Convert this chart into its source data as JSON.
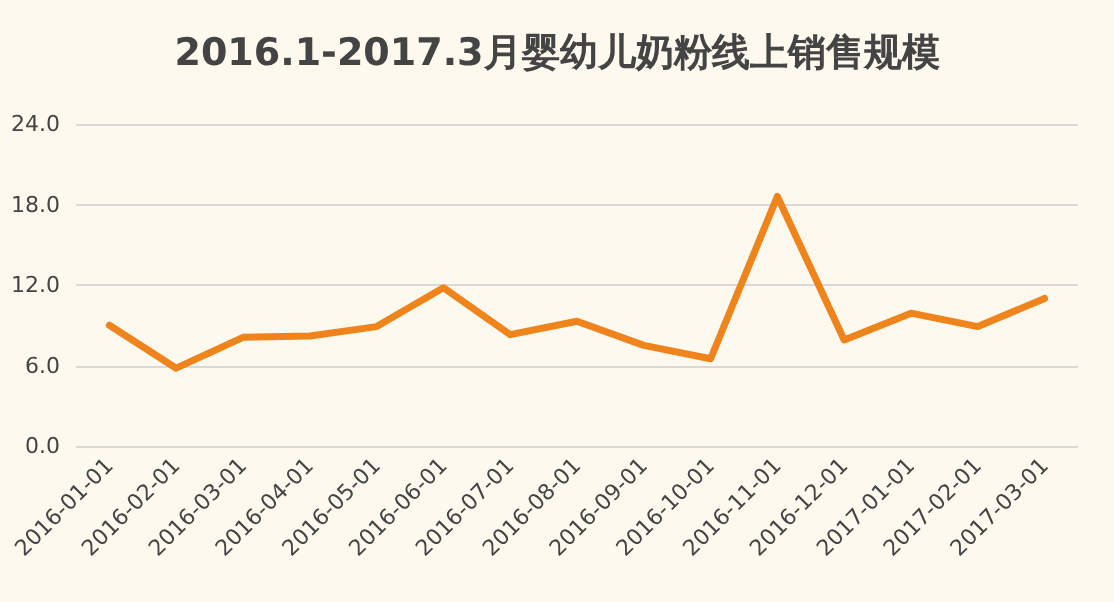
{
  "chart_data": {
    "type": "line",
    "title": "2016.1-2017.3月婴幼儿奶粉线上销售规模",
    "categories": [
      "2016-01-01",
      "2016-02-01",
      "2016-03-01",
      "2016-04-01",
      "2016-05-01",
      "2016-06-01",
      "2016-07-01",
      "2016-08-01",
      "2016-09-01",
      "2016-10-01",
      "2016-11-01",
      "2016-12-01",
      "2017-01-01",
      "2017-02-01",
      "2017-03-01"
    ],
    "series": [
      {
        "color": "#f0841c",
        "values": [
          9.0,
          5.8,
          8.1,
          8.2,
          8.9,
          11.8,
          8.3,
          9.3,
          7.5,
          6.5,
          18.6,
          7.9,
          9.9,
          8.9,
          11.0
        ]
      }
    ],
    "ylim": [
      0,
      24
    ],
    "yticks": [
      {
        "value": 0,
        "label": "0.0"
      },
      {
        "value": 6,
        "label": "6.0"
      },
      {
        "value": 12,
        "label": "12.0"
      },
      {
        "value": 18,
        "label": "18.0"
      },
      {
        "value": 24,
        "label": "24.0"
      }
    ],
    "grid": "y",
    "marker": "none",
    "line_style": "solid"
  }
}
